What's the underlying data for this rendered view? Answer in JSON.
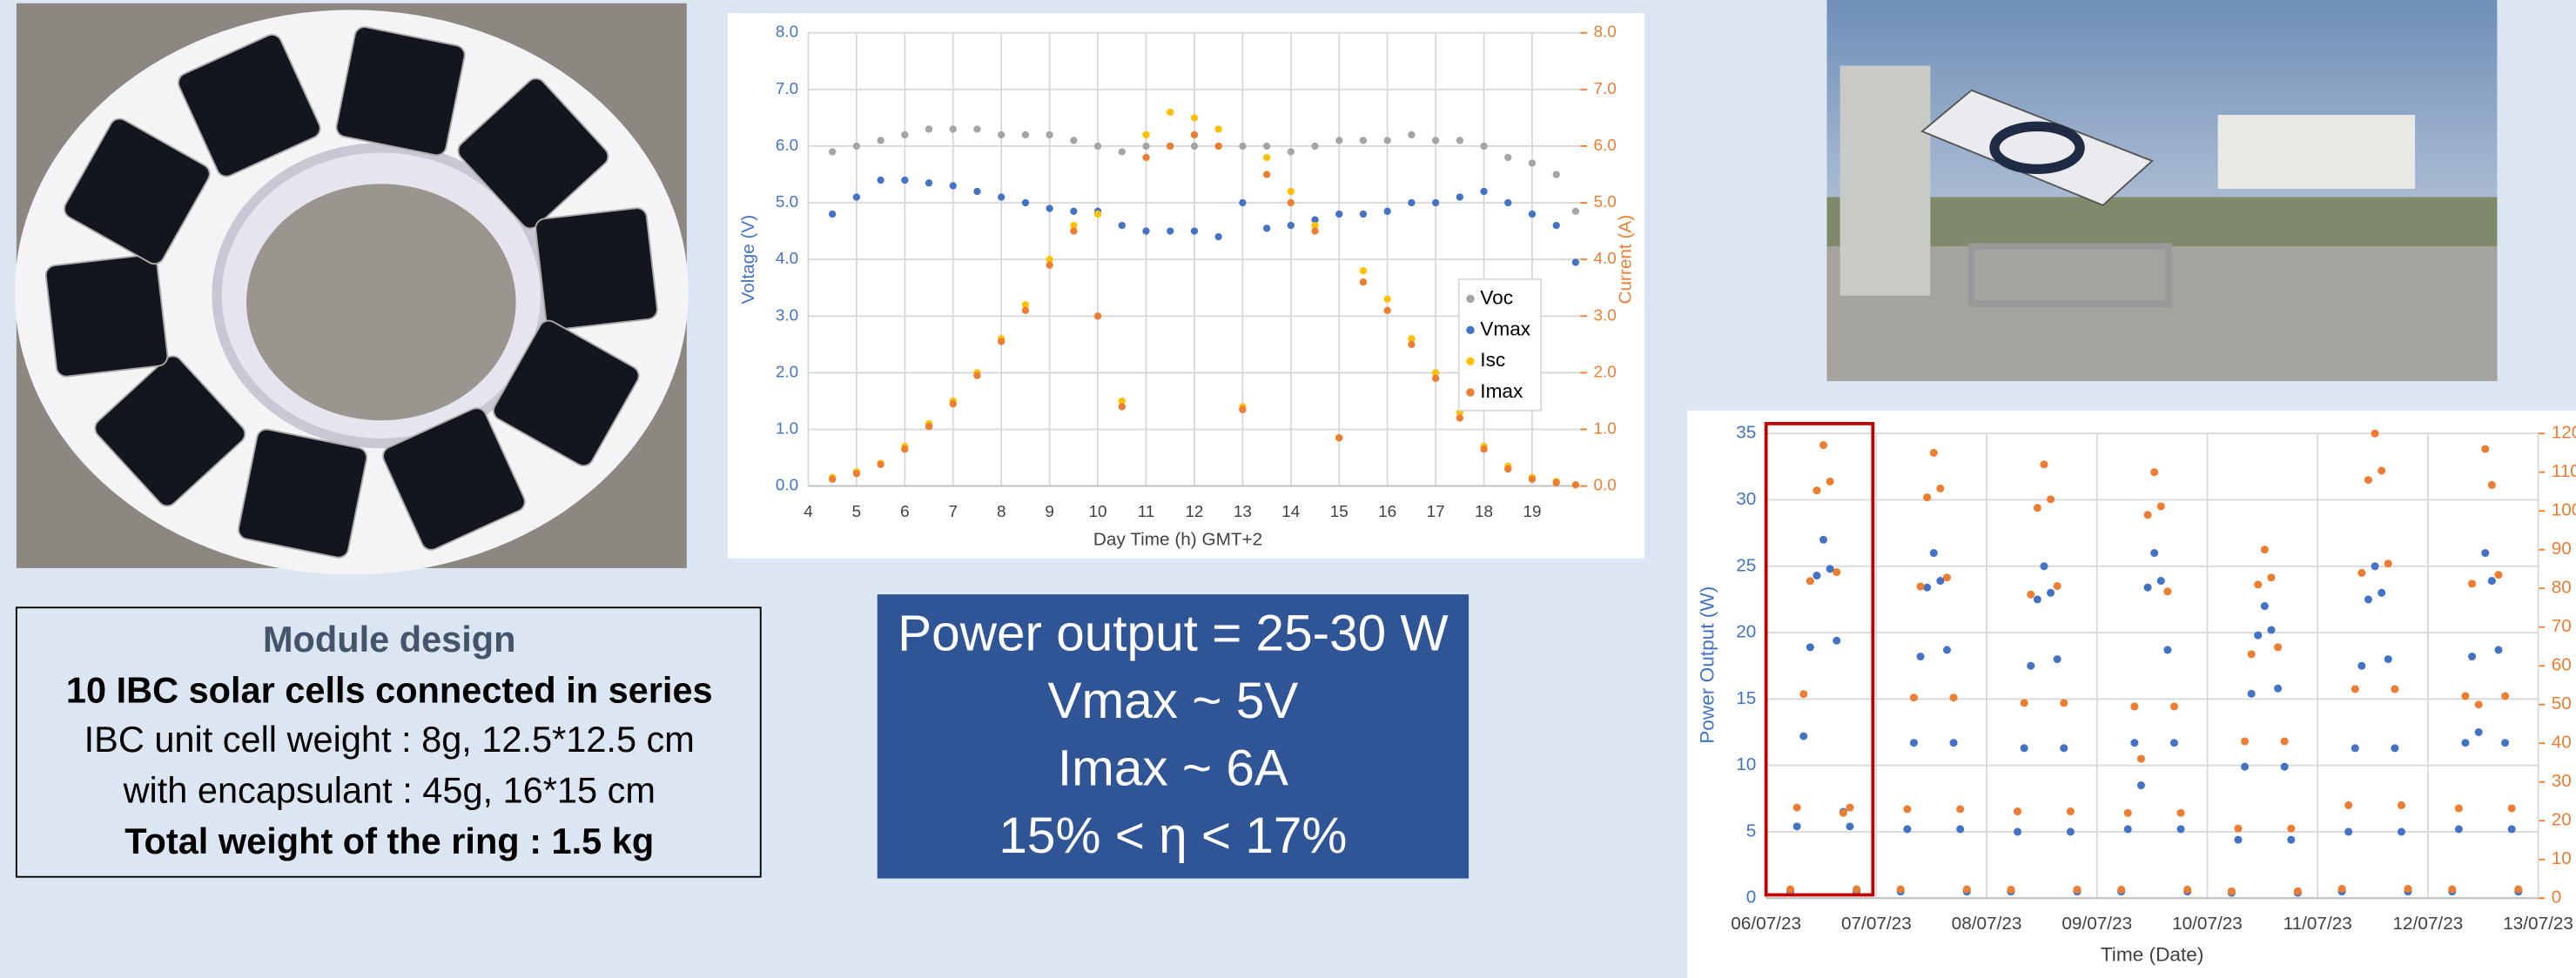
{
  "module_design": {
    "title": "Module design",
    "lines": [
      "10 IBC solar cells connected in series",
      "IBC unit cell weight : 8g, 12.5*12.5 cm",
      "with encapsulant : 45g, 16*15 cm",
      "Total weight of the ring : 1.5 kg"
    ]
  },
  "summary": {
    "lines": [
      "Power output = 25-30 W",
      "Vmax ~ 5V",
      "Imax ~ 6A",
      "15% < η < 17%"
    ]
  },
  "chart_data": [
    {
      "type": "scatter",
      "xlabel": "Day Time (h) GMT+2",
      "ylabel": "Voltage (V)",
      "y2label": "Current (A)",
      "grid": true,
      "legend": "right",
      "xlim": [
        4,
        20
      ],
      "xticks": [
        4,
        5,
        6,
        7,
        8,
        9,
        10,
        11,
        12,
        13,
        14,
        15,
        16,
        17,
        18,
        19
      ],
      "ylim": [
        0,
        8
      ],
      "yticks": [
        {
          "value": 0,
          "label": "0.0"
        },
        {
          "value": 1,
          "label": "1.0"
        },
        {
          "value": 2,
          "label": "2.0"
        },
        {
          "value": 3,
          "label": "3.0"
        },
        {
          "value": 4,
          "label": "4.0"
        },
        {
          "value": 5,
          "label": "5.0"
        },
        {
          "value": 6,
          "label": "6.0"
        },
        {
          "value": 7,
          "label": "7.0"
        },
        {
          "value": 8,
          "label": "8.0"
        }
      ],
      "y2lim": [
        0,
        8
      ],
      "y2ticks": [
        {
          "value": 0,
          "label": "0.0"
        },
        {
          "value": 1,
          "label": "1.0"
        },
        {
          "value": 2,
          "label": "2.0"
        },
        {
          "value": 3,
          "label": "3.0"
        },
        {
          "value": 4,
          "label": "4.0"
        },
        {
          "value": 5,
          "label": "5.0"
        },
        {
          "value": 6,
          "label": "6.0"
        },
        {
          "value": 7,
          "label": "7.0"
        },
        {
          "value": 8,
          "label": "8.0"
        }
      ],
      "x": [
        4.5,
        5,
        5.5,
        6,
        6.5,
        7,
        7.5,
        8,
        8.5,
        9,
        9.5,
        10,
        10.5,
        11,
        11.5,
        12,
        12.5,
        13,
        13.5,
        14,
        14.5,
        15,
        15.5,
        16,
        16.5,
        17,
        17.5,
        18,
        18.5,
        19,
        19.5,
        19.9
      ],
      "series": [
        {
          "name": "Voc",
          "color": "#a5a5a5",
          "values": [
            5.9,
            6.0,
            6.1,
            6.2,
            6.3,
            6.3,
            6.3,
            6.2,
            6.2,
            6.2,
            6.1,
            6.0,
            5.9,
            6.0,
            6.0,
            6.0,
            6.0,
            6.0,
            6.0,
            5.9,
            6.0,
            6.1,
            6.1,
            6.1,
            6.2,
            6.1,
            6.1,
            6.0,
            5.8,
            5.7,
            5.5,
            4.85
          ]
        },
        {
          "name": "Vmax",
          "color": "#4472c4",
          "values": [
            4.8,
            5.1,
            5.4,
            5.4,
            5.35,
            5.3,
            5.2,
            5.1,
            5.0,
            4.9,
            4.85,
            4.85,
            4.6,
            4.5,
            4.5,
            4.5,
            4.4,
            5.0,
            4.55,
            4.6,
            4.7,
            4.8,
            4.8,
            4.85,
            5.0,
            5.0,
            5.1,
            5.2,
            5.0,
            4.8,
            4.6,
            3.95
          ]
        },
        {
          "name": "Isc",
          "color": "#ffc000",
          "axis": "y2",
          "values": [
            0.15,
            0.25,
            0.4,
            0.7,
            1.1,
            1.5,
            2.0,
            2.6,
            3.2,
            4.0,
            4.6,
            4.8,
            1.5,
            6.2,
            6.6,
            6.5,
            6.3,
            1.4,
            5.8,
            5.2,
            4.6,
            0.85,
            3.8,
            3.3,
            2.6,
            2.0,
            1.3,
            0.7,
            0.35,
            0.15,
            0.08,
            0.02
          ]
        },
        {
          "name": "Imax",
          "color": "#ed7d31",
          "axis": "y2",
          "values": [
            0.12,
            0.22,
            0.38,
            0.65,
            1.05,
            1.45,
            1.95,
            2.55,
            3.1,
            3.9,
            4.5,
            3.0,
            1.4,
            5.8,
            6.0,
            6.2,
            6.0,
            1.35,
            5.5,
            5.0,
            4.5,
            0.85,
            3.6,
            3.1,
            2.5,
            1.9,
            1.2,
            0.65,
            0.3,
            0.12,
            0.06,
            0.02
          ]
        }
      ]
    },
    {
      "type": "scatter",
      "xlabel": "Time (Date)",
      "ylabel": "Power Output (W)",
      "grid": true,
      "xlim": [
        6,
        13
      ],
      "xticks": [
        {
          "value": 6,
          "label": "06/07/23"
        },
        {
          "value": 7,
          "label": "07/07/23"
        },
        {
          "value": 8,
          "label": "08/07/23"
        },
        {
          "value": 9,
          "label": "09/07/23"
        },
        {
          "value": 10,
          "label": "10/07/23"
        },
        {
          "value": 11,
          "label": "11/07/23"
        },
        {
          "value": 12,
          "label": "12/07/23"
        },
        {
          "value": 13,
          "label": "13/07/23"
        }
      ],
      "ylim": [
        0,
        35
      ],
      "yticks": [
        0,
        5,
        10,
        15,
        20,
        25,
        30,
        35
      ],
      "y2lim": [
        0,
        120
      ],
      "y2ticks": [
        0,
        10,
        20,
        30,
        40,
        50,
        60,
        70,
        80,
        90,
        100,
        110,
        120
      ],
      "x": [
        6.22,
        6.28,
        6.34,
        6.4,
        6.46,
        6.52,
        6.58,
        6.64,
        6.7,
        6.76,
        6.82,
        7.22,
        7.28,
        7.34,
        7.4,
        7.46,
        7.52,
        7.58,
        7.64,
        7.7,
        7.76,
        7.82,
        8.22,
        8.28,
        8.34,
        8.4,
        8.46,
        8.52,
        8.58,
        8.64,
        8.7,
        8.76,
        8.82,
        9.22,
        9.28,
        9.34,
        9.4,
        9.46,
        9.52,
        9.58,
        9.64,
        9.7,
        9.76,
        9.82,
        10.22,
        10.28,
        10.34,
        10.4,
        10.46,
        10.52,
        10.58,
        10.64,
        10.7,
        10.76,
        10.82,
        11.22,
        11.28,
        11.34,
        11.4,
        11.46,
        11.52,
        11.58,
        11.64,
        11.7,
        11.76,
        11.82,
        12.22,
        12.28,
        12.34,
        12.4,
        12.46,
        12.52,
        12.58,
        12.64,
        12.7,
        12.76,
        12.82
      ],
      "series": [
        {
          "color": "#4472c4",
          "values": [
            0.5,
            5.4,
            12.2,
            18.9,
            24.3,
            27,
            24.8,
            19.4,
            6.5,
            5.4,
            0.5,
            0.5,
            5.2,
            11.7,
            18.2,
            23.4,
            26,
            23.9,
            18.7,
            11.7,
            5.2,
            0.5,
            0.5,
            5,
            11.3,
            17.5,
            22.5,
            25,
            23,
            18,
            11.3,
            5,
            0.5,
            0.5,
            5.2,
            11.7,
            8.5,
            23.4,
            26,
            23.9,
            18.7,
            11.7,
            5.2,
            0.5,
            0.4,
            4.4,
            9.9,
            15.4,
            19.8,
            22,
            20.2,
            15.8,
            9.9,
            4.4,
            0.4,
            0.5,
            5,
            11.3,
            17.5,
            22.5,
            25,
            23,
            18,
            11.3,
            5,
            0.5,
            0.5,
            5.2,
            11.7,
            18.2,
            12.5,
            26,
            23.9,
            18.7,
            11.7,
            5.2,
            0.5
          ]
        },
        {
          "color": "#ed7d31",
          "axis": "y2",
          "values": [
            2.3,
            23.4,
            52.7,
            81.9,
            105.3,
            117,
            107.6,
            84.2,
            22,
            23.4,
            2.3,
            2.3,
            23,
            51.8,
            80.5,
            103.5,
            115,
            105.8,
            82.8,
            51.8,
            23,
            2.3,
            2.2,
            22.4,
            50.4,
            78.4,
            100.8,
            112,
            103,
            80.6,
            50.4,
            22.4,
            2.2,
            2.2,
            22,
            49.5,
            36,
            99,
            110,
            101.2,
            79.2,
            49.5,
            22,
            2.2,
            1.8,
            18,
            40.5,
            63,
            81,
            90,
            82.8,
            64.8,
            40.5,
            18,
            1.8,
            2.4,
            24,
            54,
            84,
            108,
            120,
            110.4,
            86.4,
            54,
            24,
            2.4,
            2.3,
            23.2,
            52.2,
            81.2,
            50,
            116,
            106.7,
            83.5,
            52.2,
            23.2,
            2.3
          ]
        }
      ]
    }
  ]
}
